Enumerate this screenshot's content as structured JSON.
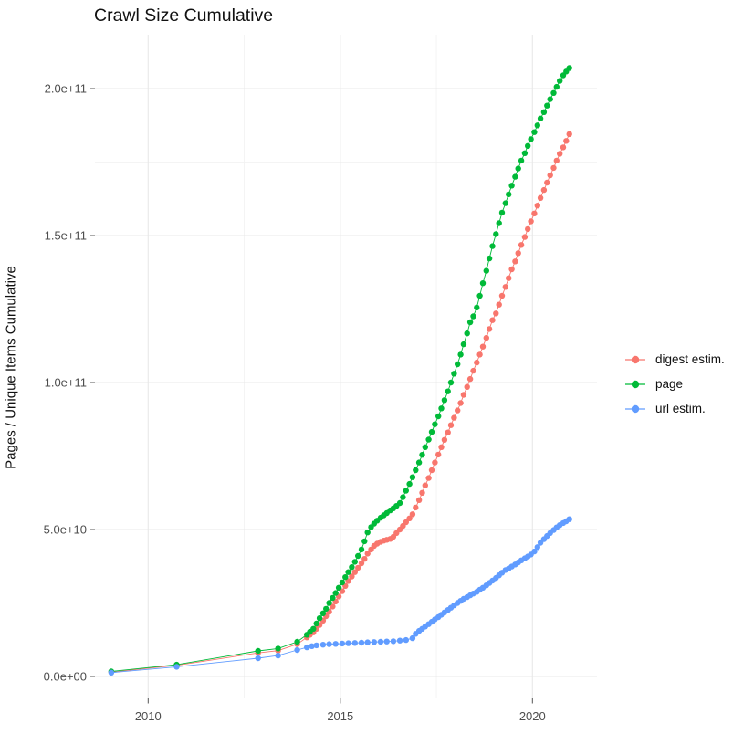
{
  "page": {
    "background": "#ffffff"
  },
  "chart_data": {
    "type": "line",
    "title": "Crawl Size Cumulative",
    "xlabel": "",
    "ylabel": "Pages / Unique Items Cumulative",
    "grid": true,
    "legend_position": "right",
    "xlim": [
      2008.4,
      2021.7
    ],
    "ylim": [
      0,
      215000000000.0
    ],
    "y_unit": "pages, values below in billions (1e9)",
    "x_ticks": {
      "major": [
        2010,
        2015,
        2020
      ],
      "minor": [
        2012.5,
        2017.5
      ],
      "labels": [
        "2010",
        "2015",
        "2020"
      ]
    },
    "y_ticks": {
      "major_billions": [
        0,
        50,
        100,
        150,
        200
      ],
      "minor_billions": [
        25,
        75,
        125,
        175
      ],
      "labels": [
        "0.0e+00",
        "5.0e+10",
        "1.0e+11",
        "1.5e+11",
        "2.0e+11"
      ]
    },
    "series": [
      {
        "name": "digest estim.",
        "color": "#F8766D",
        "points": [
          [
            2009.04,
            1.5
          ],
          [
            2010.74,
            3.8
          ],
          [
            2012.86,
            8.0
          ],
          [
            2013.38,
            8.8
          ],
          [
            2013.88,
            11.0
          ],
          [
            2014.13,
            13.3
          ],
          [
            2014.21,
            14.2
          ],
          [
            2014.3,
            15.0
          ],
          [
            2014.38,
            16.2
          ],
          [
            2014.46,
            17.5
          ],
          [
            2014.55,
            19.0
          ],
          [
            2014.63,
            20.5
          ],
          [
            2014.71,
            22.0
          ],
          [
            2014.8,
            23.8
          ],
          [
            2014.88,
            25.5
          ],
          [
            2014.96,
            27.2
          ],
          [
            2015.05,
            29.0
          ],
          [
            2015.13,
            30.8
          ],
          [
            2015.21,
            32.5
          ],
          [
            2015.3,
            34.0
          ],
          [
            2015.38,
            35.5
          ],
          [
            2015.46,
            37.0
          ],
          [
            2015.55,
            38.5
          ],
          [
            2015.63,
            40.0
          ],
          [
            2015.71,
            41.8
          ],
          [
            2015.8,
            43.2
          ],
          [
            2015.88,
            44.4
          ],
          [
            2015.96,
            45.2
          ],
          [
            2016.05,
            45.8
          ],
          [
            2016.13,
            46.2
          ],
          [
            2016.21,
            46.5
          ],
          [
            2016.3,
            46.8
          ],
          [
            2016.38,
            47.5
          ],
          [
            2016.46,
            48.8
          ],
          [
            2016.55,
            50.0
          ],
          [
            2016.63,
            51.2
          ],
          [
            2016.71,
            52.5
          ],
          [
            2016.8,
            53.8
          ],
          [
            2016.88,
            55.2
          ],
          [
            2016.96,
            57.5
          ],
          [
            2017.05,
            60.0
          ],
          [
            2017.13,
            62.5
          ],
          [
            2017.21,
            65.0
          ],
          [
            2017.3,
            67.5
          ],
          [
            2017.38,
            70.2
          ],
          [
            2017.46,
            72.8
          ],
          [
            2017.55,
            75.5
          ],
          [
            2017.63,
            78.0
          ],
          [
            2017.71,
            80.5
          ],
          [
            2017.8,
            83.0
          ],
          [
            2017.88,
            85.5
          ],
          [
            2017.96,
            88.0
          ],
          [
            2018.05,
            90.5
          ],
          [
            2018.13,
            93.0
          ],
          [
            2018.21,
            95.8
          ],
          [
            2018.3,
            98.5
          ],
          [
            2018.38,
            101.2
          ],
          [
            2018.46,
            104.0
          ],
          [
            2018.55,
            106.8
          ],
          [
            2018.63,
            109.5
          ],
          [
            2018.71,
            112.2
          ],
          [
            2018.8,
            115.2
          ],
          [
            2018.88,
            118.2
          ],
          [
            2018.96,
            121.2
          ],
          [
            2019.05,
            123.5
          ],
          [
            2019.13,
            126.5
          ],
          [
            2019.21,
            129.5
          ],
          [
            2019.3,
            132.5
          ],
          [
            2019.38,
            135.5
          ],
          [
            2019.46,
            138.5
          ],
          [
            2019.55,
            141.2
          ],
          [
            2019.63,
            144.0
          ],
          [
            2019.71,
            146.8
          ],
          [
            2019.8,
            149.5
          ],
          [
            2019.88,
            152.2
          ],
          [
            2019.96,
            154.8
          ],
          [
            2020.05,
            157.5
          ],
          [
            2020.13,
            160.2
          ],
          [
            2020.21,
            162.8
          ],
          [
            2020.3,
            165.5
          ],
          [
            2020.38,
            168.0
          ],
          [
            2020.46,
            170.5
          ],
          [
            2020.55,
            173.0
          ],
          [
            2020.63,
            175.5
          ],
          [
            2020.71,
            177.8
          ],
          [
            2020.8,
            180.0
          ],
          [
            2020.88,
            182.2
          ],
          [
            2020.96,
            184.5
          ]
        ]
      },
      {
        "name": "page",
        "color": "#00BA38",
        "points": [
          [
            2009.04,
            1.7
          ],
          [
            2010.74,
            4.0
          ],
          [
            2012.86,
            8.7
          ],
          [
            2013.38,
            9.5
          ],
          [
            2013.88,
            11.8
          ],
          [
            2014.13,
            14.2
          ],
          [
            2014.21,
            15.2
          ],
          [
            2014.3,
            16.2
          ],
          [
            2014.38,
            18.0
          ],
          [
            2014.46,
            19.8
          ],
          [
            2014.55,
            21.5
          ],
          [
            2014.63,
            23.0
          ],
          [
            2014.71,
            25.0
          ],
          [
            2014.8,
            26.7
          ],
          [
            2014.88,
            28.4
          ],
          [
            2014.96,
            30.2
          ],
          [
            2015.05,
            32.0
          ],
          [
            2015.13,
            33.8
          ],
          [
            2015.21,
            35.5
          ],
          [
            2015.3,
            37.2
          ],
          [
            2015.38,
            39.0
          ],
          [
            2015.46,
            41.0
          ],
          [
            2015.55,
            43.2
          ],
          [
            2015.63,
            46.0
          ],
          [
            2015.71,
            49.0
          ],
          [
            2015.8,
            50.8
          ],
          [
            2015.88,
            52.0
          ],
          [
            2015.96,
            53.0
          ],
          [
            2016.05,
            54.0
          ],
          [
            2016.13,
            54.8
          ],
          [
            2016.21,
            55.6
          ],
          [
            2016.3,
            56.5
          ],
          [
            2016.38,
            57.2
          ],
          [
            2016.46,
            58.0
          ],
          [
            2016.55,
            59.0
          ],
          [
            2016.63,
            61.0
          ],
          [
            2016.71,
            63.2
          ],
          [
            2016.8,
            65.5
          ],
          [
            2016.88,
            67.8
          ],
          [
            2016.96,
            70.2
          ],
          [
            2017.05,
            72.8
          ],
          [
            2017.13,
            75.4
          ],
          [
            2017.21,
            78.0
          ],
          [
            2017.3,
            80.6
          ],
          [
            2017.38,
            83.2
          ],
          [
            2017.46,
            85.8
          ],
          [
            2017.55,
            88.5
          ],
          [
            2017.63,
            91.2
          ],
          [
            2017.71,
            94.0
          ],
          [
            2017.8,
            97.0
          ],
          [
            2017.88,
            100.0
          ],
          [
            2017.96,
            103.0
          ],
          [
            2018.05,
            106.2
          ],
          [
            2018.13,
            109.5
          ],
          [
            2018.21,
            113.0
          ],
          [
            2018.3,
            116.7
          ],
          [
            2018.38,
            120.5
          ],
          [
            2018.46,
            122.5
          ],
          [
            2018.55,
            125.5
          ],
          [
            2018.63,
            129.5
          ],
          [
            2018.71,
            133.8
          ],
          [
            2018.8,
            138.0
          ],
          [
            2018.88,
            142.2
          ],
          [
            2018.96,
            146.4
          ],
          [
            2019.05,
            150.5
          ],
          [
            2019.13,
            154.2
          ],
          [
            2019.21,
            157.8
          ],
          [
            2019.3,
            161.0
          ],
          [
            2019.38,
            164.0
          ],
          [
            2019.46,
            167.0
          ],
          [
            2019.55,
            170.0
          ],
          [
            2019.63,
            172.8
          ],
          [
            2019.71,
            175.5
          ],
          [
            2019.8,
            178.0
          ],
          [
            2019.88,
            180.5
          ],
          [
            2019.96,
            182.8
          ],
          [
            2020.05,
            185.2
          ],
          [
            2020.13,
            187.5
          ],
          [
            2020.21,
            189.8
          ],
          [
            2020.3,
            192.0
          ],
          [
            2020.38,
            194.2
          ],
          [
            2020.46,
            196.4
          ],
          [
            2020.55,
            198.5
          ],
          [
            2020.63,
            200.6
          ],
          [
            2020.71,
            202.6
          ],
          [
            2020.8,
            204.5
          ],
          [
            2020.88,
            205.8
          ],
          [
            2020.96,
            207.0
          ]
        ]
      },
      {
        "name": "url estim.",
        "color": "#619CFF",
        "points": [
          [
            2009.04,
            1.3
          ],
          [
            2010.74,
            3.3
          ],
          [
            2012.86,
            6.2
          ],
          [
            2013.38,
            7.1
          ],
          [
            2013.88,
            9.0
          ],
          [
            2014.13,
            9.9
          ],
          [
            2014.26,
            10.3
          ],
          [
            2014.38,
            10.6
          ],
          [
            2014.55,
            10.8
          ],
          [
            2014.71,
            11.0
          ],
          [
            2014.88,
            11.1
          ],
          [
            2015.05,
            11.2
          ],
          [
            2015.21,
            11.3
          ],
          [
            2015.38,
            11.4
          ],
          [
            2015.55,
            11.5
          ],
          [
            2015.71,
            11.6
          ],
          [
            2015.88,
            11.7
          ],
          [
            2016.05,
            11.8
          ],
          [
            2016.21,
            11.9
          ],
          [
            2016.38,
            12.0
          ],
          [
            2016.55,
            12.2
          ],
          [
            2016.71,
            12.4
          ],
          [
            2016.88,
            13.0
          ],
          [
            2016.96,
            14.5
          ],
          [
            2017.05,
            15.5
          ],
          [
            2017.13,
            16.2
          ],
          [
            2017.21,
            17.0
          ],
          [
            2017.3,
            17.8
          ],
          [
            2017.38,
            18.6
          ],
          [
            2017.46,
            19.4
          ],
          [
            2017.55,
            20.2
          ],
          [
            2017.63,
            21.0
          ],
          [
            2017.71,
            21.8
          ],
          [
            2017.8,
            22.6
          ],
          [
            2017.88,
            23.4
          ],
          [
            2017.96,
            24.2
          ],
          [
            2018.05,
            25.0
          ],
          [
            2018.13,
            25.7
          ],
          [
            2018.21,
            26.4
          ],
          [
            2018.3,
            27.0
          ],
          [
            2018.38,
            27.6
          ],
          [
            2018.46,
            28.2
          ],
          [
            2018.55,
            28.8
          ],
          [
            2018.63,
            29.5
          ],
          [
            2018.71,
            30.2
          ],
          [
            2018.8,
            31.0
          ],
          [
            2018.88,
            31.8
          ],
          [
            2018.96,
            32.6
          ],
          [
            2019.05,
            33.5
          ],
          [
            2019.13,
            34.4
          ],
          [
            2019.21,
            35.3
          ],
          [
            2019.3,
            36.2
          ],
          [
            2019.38,
            36.7
          ],
          [
            2019.46,
            37.4
          ],
          [
            2019.55,
            38.1
          ],
          [
            2019.63,
            38.8
          ],
          [
            2019.71,
            39.5
          ],
          [
            2019.8,
            40.2
          ],
          [
            2019.88,
            40.8
          ],
          [
            2019.96,
            41.5
          ],
          [
            2020.05,
            42.5
          ],
          [
            2020.13,
            44.0
          ],
          [
            2020.21,
            45.5
          ],
          [
            2020.3,
            46.7
          ],
          [
            2020.38,
            47.8
          ],
          [
            2020.46,
            48.8
          ],
          [
            2020.55,
            49.8
          ],
          [
            2020.63,
            50.7
          ],
          [
            2020.71,
            51.5
          ],
          [
            2020.8,
            52.2
          ],
          [
            2020.88,
            52.8
          ],
          [
            2020.96,
            53.5
          ]
        ]
      }
    ],
    "style": {
      "grid_major_color": "#E8E8E8",
      "grid_minor_color": "#F0F0F0",
      "tick_color": "#555555",
      "tick_label_color": "#4D4D4D",
      "point_radius": 3.2,
      "line_width": 0.9
    }
  }
}
